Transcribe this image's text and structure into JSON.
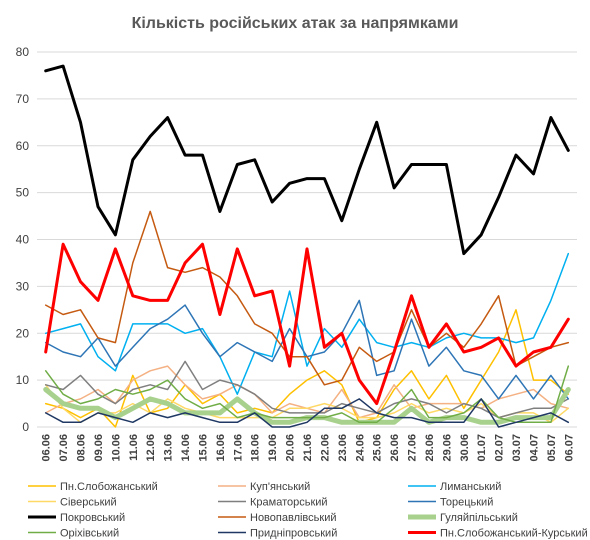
{
  "chart_data": {
    "type": "line",
    "title": "Кількість російських атак за напрямками",
    "xlabel": "",
    "ylabel": "",
    "ylim": [
      0,
      80
    ],
    "yticks": [
      0,
      10,
      20,
      30,
      40,
      50,
      60,
      70,
      80
    ],
    "grid": "horizontal",
    "legend_position": "bottom",
    "categories": [
      "06.06",
      "07.06",
      "08.06",
      "09.06",
      "10.06",
      "11.06",
      "12.06",
      "13.06",
      "14.06",
      "15.06",
      "16.06",
      "17.06",
      "18.06",
      "19.06",
      "20.06",
      "21.06",
      "22.06",
      "23.06",
      "24.06",
      "25.06",
      "26.06",
      "27.06",
      "28.06",
      "29.06",
      "30.06",
      "01.07",
      "02.07",
      "03.07",
      "04.07",
      "05.07",
      "06.07"
    ],
    "series": [
      {
        "name": "Пн.Слобожанський",
        "color": "#FFC000",
        "width": 1.5,
        "values": [
          5,
          4,
          2,
          4,
          0,
          11,
          3,
          4,
          9,
          5,
          7,
          3,
          4,
          3,
          7,
          10,
          12,
          9,
          1,
          2,
          8,
          12,
          6,
          11,
          4,
          10,
          16,
          25,
          10,
          10,
          7
        ]
      },
      {
        "name": "Куп'янський",
        "color": "#F4B183",
        "width": 1.5,
        "values": [
          3,
          5,
          6,
          8,
          5,
          10,
          12,
          13,
          9,
          6,
          7,
          9,
          7,
          3,
          5,
          4,
          3,
          8,
          2,
          3,
          9,
          4,
          5,
          5,
          5,
          4,
          6,
          7,
          8,
          5,
          4
        ]
      },
      {
        "name": "Лиманський",
        "color": "#00B0F0",
        "width": 1.5,
        "values": [
          20,
          21,
          22,
          15,
          12,
          22,
          22,
          22,
          20,
          21,
          15,
          7,
          16,
          15,
          29,
          13,
          21,
          17,
          23,
          18,
          17,
          18,
          17,
          19,
          20,
          19,
          19,
          18,
          19,
          27,
          37
        ]
      },
      {
        "name": "Сіверський",
        "color": "#FFD966",
        "width": 1.5,
        "values": [
          9,
          4,
          1,
          3,
          3,
          5,
          3,
          6,
          4,
          3,
          2,
          2,
          2,
          2,
          4,
          4,
          5,
          4,
          2,
          2,
          3,
          5,
          3,
          4,
          3,
          5,
          2,
          3,
          3,
          1,
          4
        ]
      },
      {
        "name": "Краматорський",
        "color": "#7F7F7F",
        "width": 1.5,
        "values": [
          9,
          8,
          11,
          7,
          5,
          8,
          9,
          8,
          14,
          8,
          10,
          9,
          7,
          4,
          3,
          3,
          3,
          5,
          4,
          3,
          5,
          6,
          5,
          3,
          5,
          4,
          2,
          3,
          4,
          4,
          6
        ]
      },
      {
        "name": "Торецький",
        "color": "#2E75B6",
        "width": 1.5,
        "values": [
          18,
          16,
          15,
          19,
          13,
          17,
          21,
          23,
          26,
          20,
          15,
          18,
          16,
          14,
          21,
          15,
          16,
          20,
          27,
          11,
          12,
          23,
          13,
          17,
          12,
          11,
          6,
          11,
          6,
          11,
          6
        ]
      },
      {
        "name": "Покровський",
        "color": "#000000",
        "width": 3,
        "values": [
          76,
          77,
          65,
          47,
          41,
          57,
          62,
          66,
          58,
          58,
          46,
          56,
          57,
          48,
          52,
          53,
          53,
          44,
          55,
          65,
          51,
          56,
          56,
          56,
          37,
          41,
          49,
          58,
          54,
          66,
          59
        ]
      },
      {
        "name": "Новопавлівський",
        "color": "#C55A11",
        "width": 1.5,
        "values": [
          26,
          24,
          25,
          19,
          18,
          35,
          46,
          34,
          33,
          34,
          32,
          28,
          22,
          20,
          15,
          15,
          9,
          10,
          17,
          14,
          16,
          25,
          17,
          20,
          17,
          22,
          28,
          13,
          15,
          17,
          18
        ]
      },
      {
        "name": "Гуляйпільський",
        "color": "#A9D18E",
        "width": 5,
        "values": [
          8,
          5,
          4,
          4,
          2,
          4,
          6,
          5,
          3,
          3,
          3,
          6,
          3,
          1,
          1,
          2,
          2,
          1,
          1,
          1,
          1,
          4,
          1,
          2,
          2,
          1,
          1,
          2,
          2,
          2,
          8
        ]
      },
      {
        "name": "Оріхівський",
        "color": "#70AD47",
        "width": 1.5,
        "values": [
          12,
          7,
          5,
          6,
          8,
          7,
          8,
          10,
          6,
          4,
          5,
          2,
          3,
          2,
          2,
          2,
          2,
          3,
          1,
          1,
          4,
          8,
          2,
          2,
          3,
          6,
          2,
          1,
          1,
          1,
          13
        ]
      },
      {
        "name": "Придніпровський",
        "color": "#1F3864",
        "width": 1.5,
        "values": [
          3,
          1,
          1,
          3,
          2,
          1,
          3,
          2,
          3,
          2,
          1,
          1,
          3,
          0,
          0,
          1,
          4,
          4,
          6,
          3,
          2,
          2,
          1,
          1,
          1,
          6,
          0,
          1,
          2,
          3,
          1
        ]
      },
      {
        "name": "Пн.Слобожанський-Курський",
        "color": "#FF0000",
        "width": 3,
        "values": [
          16,
          39,
          31,
          27,
          38,
          28,
          27,
          27,
          35,
          39,
          24,
          38,
          28,
          29,
          13,
          38,
          17,
          20,
          10,
          5,
          16,
          28,
          17,
          22,
          16,
          17,
          19,
          13,
          16,
          17,
          23
        ]
      }
    ]
  }
}
